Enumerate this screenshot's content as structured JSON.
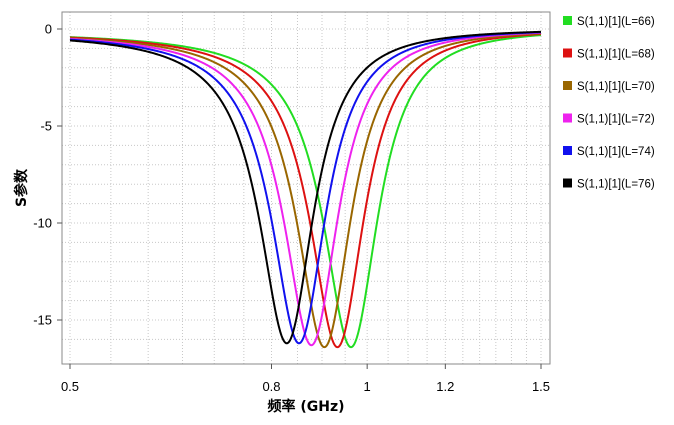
{
  "chart_data": {
    "type": "line",
    "title": "",
    "xlabel": "频率 (GHz)",
    "ylabel": "S参数",
    "xlim": [
      0.5,
      1.5
    ],
    "ylim": [
      -17.2,
      0.6
    ],
    "x_scale": "log",
    "x_ticks": [
      0.5,
      0.8,
      1,
      1.2,
      1.5
    ],
    "x_tick_labels": [
      "0.5",
      "0.8",
      "1",
      "1.2",
      "1.5"
    ],
    "y_ticks": [
      0,
      -5,
      -10,
      -15
    ],
    "y_tick_labels": [
      "0",
      "-5",
      "-10",
      "-15"
    ],
    "grid": true,
    "legend_position": "right",
    "series": [
      {
        "name": "S(1,1)[1](L=66)",
        "color": "#22dd22",
        "f0": 0.963,
        "min_db": -16.4,
        "bandwidth": 0.075
      },
      {
        "name": "S(1,1)[1](L=68)",
        "color": "#dd1111",
        "f0": 0.933,
        "min_db": -16.4,
        "bandwidth": 0.072
      },
      {
        "name": "S(1,1)[1](L=70)",
        "color": "#996600",
        "f0": 0.905,
        "min_db": -16.4,
        "bandwidth": 0.07
      },
      {
        "name": "S(1,1)[1](L=72)",
        "color": "#ee22ee",
        "f0": 0.878,
        "min_db": -16.3,
        "bandwidth": 0.068
      },
      {
        "name": "S(1,1)[1](L=74)",
        "color": "#1111ee",
        "f0": 0.853,
        "min_db": -16.2,
        "bandwidth": 0.066
      },
      {
        "name": "S(1,1)[1](L=76)",
        "color": "#000000",
        "f0": 0.829,
        "min_db": -16.2,
        "bandwidth": 0.064
      }
    ]
  }
}
